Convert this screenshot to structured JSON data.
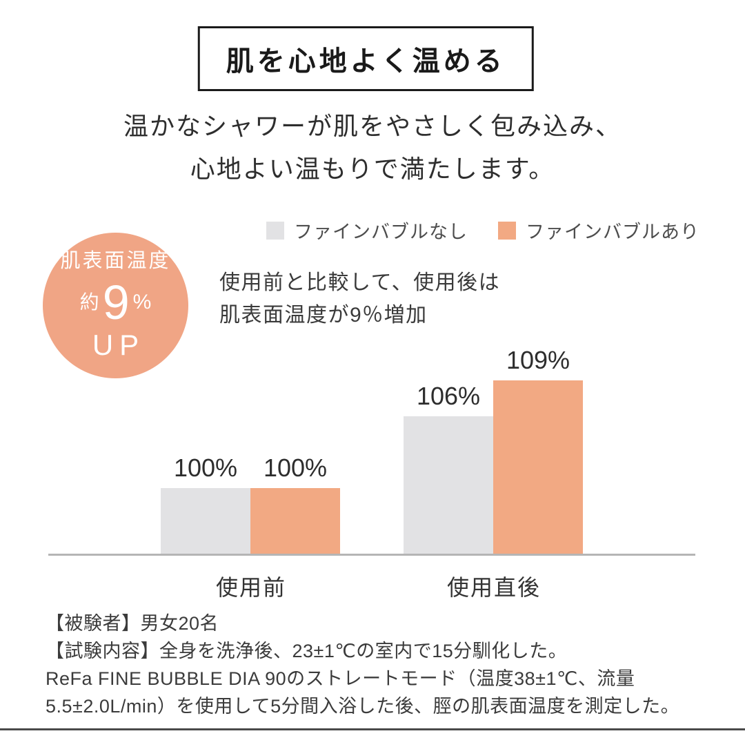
{
  "title_box": {
    "text": "肌を心地よく温める"
  },
  "subtitle": {
    "line1": "温かなシャワーが肌をやさしく包み込み、",
    "line2": "心地よい温もりで満たします。"
  },
  "legend": {
    "items": [
      {
        "label": "ファインバブルなし",
        "color": "#E2E2E4"
      },
      {
        "label": "ファインバブルあり",
        "color": "#F2A983"
      }
    ]
  },
  "badge": {
    "top_label": "肌表面温度",
    "approx": "約",
    "value": "9",
    "unit": "%",
    "bottom_label": "UP",
    "bg_color": "#F0A585"
  },
  "note": {
    "line1": "使用前と比較して、使用後は",
    "line2": "肌表面温度が9％増加"
  },
  "chart_data": {
    "type": "bar",
    "categories": [
      "使用前",
      "使用直後"
    ],
    "series": [
      {
        "name": "ファインバブルなし",
        "color": "#E2E2E4",
        "values": [
          100,
          106
        ],
        "labels": [
          "100%",
          "106%"
        ]
      },
      {
        "name": "ファインバブルあり",
        "color": "#F2A983",
        "values": [
          100,
          109
        ],
        "labels": [
          "100%",
          "109%"
        ]
      }
    ],
    "unit": "%",
    "ylim": [
      94.5,
      112
    ],
    "grid": false,
    "legend_position": "top-right",
    "value_labels": true,
    "axis_line_color": "#B5B5B5"
  },
  "footnotes": {
    "lines": [
      "【被験者】男女20名",
      "【試験内容】全身を洗浄後、23±1℃の室内で15分馴化した。",
      "ReFa FINE BUBBLE DIA 90のストレートモード（温度38±1℃、流量",
      "5.5±2.0L/min）を使用して5分間入浴した後、脛の肌表面温度を測定した。"
    ]
  }
}
